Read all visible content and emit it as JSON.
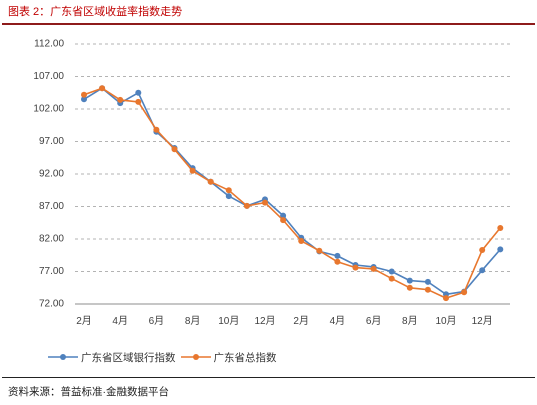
{
  "chart_data": {
    "type": "line",
    "title": "图表 2：广东省区域收益率指数走势",
    "xlabel": "",
    "ylabel": "",
    "categories": [
      "2月",
      "",
      "4月",
      "",
      "6月",
      "",
      "8月",
      "",
      "10月",
      "",
      "12月",
      "",
      "2月",
      "",
      "4月",
      "",
      "6月",
      "",
      "8月",
      "",
      "10月",
      "",
      "12月",
      ""
    ],
    "series": [
      {
        "name": "广东省区域银行指数",
        "color": "#4F81BD",
        "values": [
          103.5,
          105.2,
          102.9,
          104.5,
          98.5,
          96.0,
          92.9,
          90.8,
          88.6,
          87.1,
          88.1,
          85.6,
          82.2,
          80.1,
          79.4,
          78.0,
          77.7,
          77.0,
          75.6,
          75.4,
          73.5,
          73.9,
          77.2,
          80.4
        ]
      },
      {
        "name": "广东省总指数",
        "color": "#E8772E",
        "values": [
          104.2,
          105.2,
          103.4,
          103.1,
          98.8,
          95.8,
          92.5,
          90.8,
          89.5,
          87.1,
          87.6,
          84.9,
          81.7,
          80.2,
          78.5,
          77.6,
          77.4,
          75.9,
          74.5,
          74.2,
          72.9,
          73.8,
          80.3,
          83.7
        ]
      }
    ],
    "ylim": [
      72,
      112
    ],
    "yticks": [
      {
        "value": 112,
        "label": "112.00"
      },
      {
        "value": 107,
        "label": "107.00"
      },
      {
        "value": 102,
        "label": "102.00"
      },
      {
        "value": 97,
        "label": "97.00"
      },
      {
        "value": 92,
        "label": "92.00"
      },
      {
        "value": 87,
        "label": "87.00"
      },
      {
        "value": 82,
        "label": "82.00"
      },
      {
        "value": 77,
        "label": "77.00"
      },
      {
        "value": 72,
        "label": "72.00"
      }
    ],
    "grid": true,
    "legend": "bottom-left"
  },
  "footer": {
    "source": "资料来源：普益标准·金融数据平台"
  },
  "colors": {
    "title": "#C00000",
    "title_rule": "#8E1B1B",
    "footer_rule": "#222222"
  }
}
